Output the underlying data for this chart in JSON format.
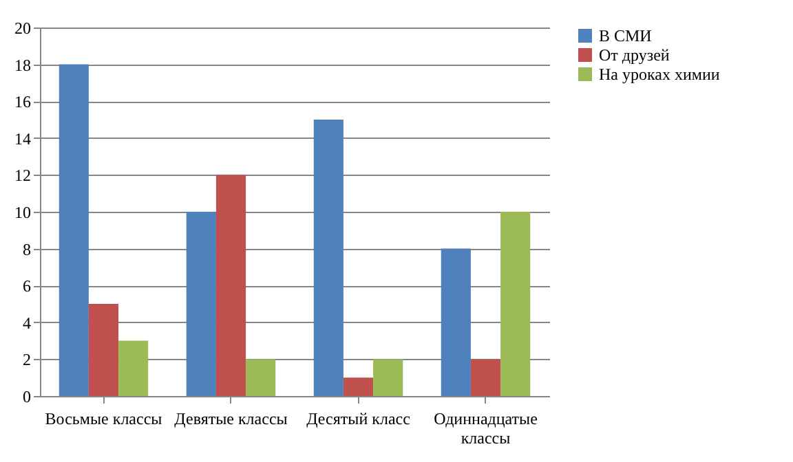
{
  "chart_data": {
    "type": "bar",
    "categories": [
      "Восьмые классы",
      "Девятые классы",
      "Десятый класс",
      "Одиннадцатые классы"
    ],
    "series": [
      {
        "name": "В СМИ",
        "color": "#4f81bd",
        "values": [
          18,
          10,
          15,
          8
        ]
      },
      {
        "name": "От друзей",
        "color": "#c0504d",
        "values": [
          5,
          12,
          1,
          2
        ]
      },
      {
        "name": "На уроках химии",
        "color": "#9bbb59",
        "values": [
          3,
          2,
          2,
          10
        ]
      }
    ],
    "ylim": [
      0,
      20
    ],
    "yticks": [
      0,
      2,
      4,
      6,
      8,
      10,
      12,
      14,
      16,
      18,
      20
    ],
    "grid": "y",
    "legend": "right"
  }
}
